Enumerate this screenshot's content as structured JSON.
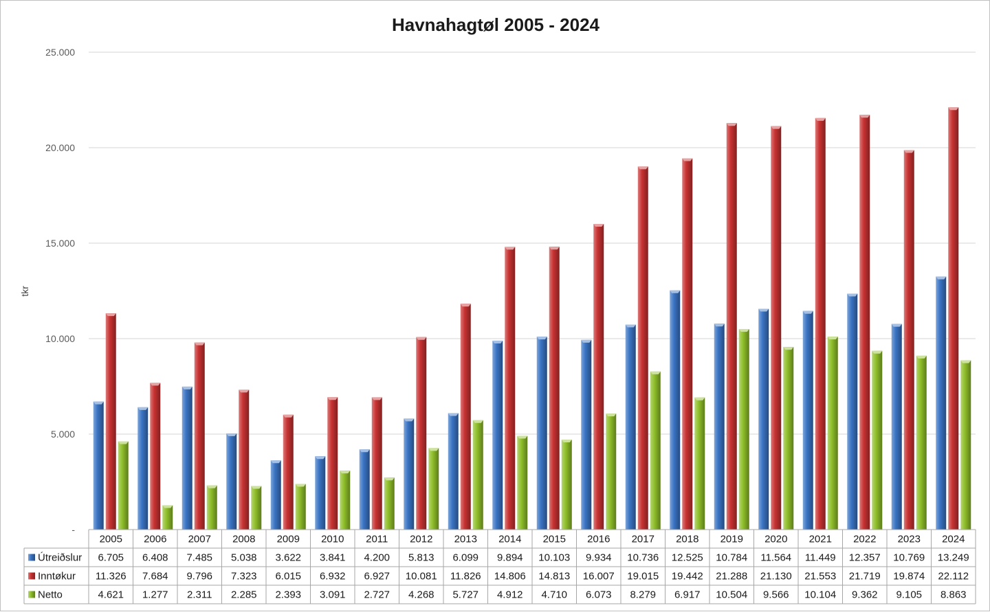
{
  "chart_data": {
    "type": "bar",
    "title": "Havnahagtøl 2005 - 2024",
    "xlabel": "",
    "ylabel": "tkr",
    "ylim": [
      0,
      25000
    ],
    "yticks": [
      0,
      5000,
      10000,
      15000,
      20000,
      25000
    ],
    "ytick_labels": [
      "-",
      "5.000",
      "10.000",
      "15.000",
      "20.000",
      "25.000"
    ],
    "grid": true,
    "legend": "data-table",
    "categories": [
      "2005",
      "2006",
      "2007",
      "2008",
      "2009",
      "2010",
      "2011",
      "2012",
      "2013",
      "2014",
      "2015",
      "2016",
      "2017",
      "2018",
      "2019",
      "2020",
      "2021",
      "2022",
      "2023",
      "2024"
    ],
    "series": [
      {
        "name": "Útreiðslur",
        "color": "#3a74c4",
        "values": [
          6705,
          6408,
          7485,
          5038,
          3622,
          3841,
          4200,
          5813,
          6099,
          9894,
          10103,
          9934,
          10736,
          12525,
          10784,
          11564,
          11449,
          12357,
          10769,
          13249
        ],
        "labels": [
          "6.705",
          "6.408",
          "7.485",
          "5.038",
          "3.622",
          "3.841",
          "4.200",
          "5.813",
          "6.099",
          "9.894",
          "10.103",
          "9.934",
          "10.736",
          "12.525",
          "10.784",
          "11.564",
          "11.449",
          "12.357",
          "10.769",
          "13.249"
        ]
      },
      {
        "name": "Inntøkur",
        "color": "#c83232",
        "values": [
          11326,
          7684,
          9796,
          7323,
          6015,
          6932,
          6927,
          10081,
          11826,
          14806,
          14813,
          16007,
          19015,
          19442,
          21288,
          21130,
          21553,
          21719,
          19874,
          22112
        ],
        "labels": [
          "11.326",
          "7.684",
          "9.796",
          "7.323",
          "6.015",
          "6.932",
          "6.927",
          "10.081",
          "11.826",
          "14.806",
          "14.813",
          "16.007",
          "19.015",
          "19.442",
          "21.288",
          "21.130",
          "21.553",
          "21.719",
          "19.874",
          "22.112"
        ]
      },
      {
        "name": "Netto",
        "color": "#8fbf2a",
        "values": [
          4621,
          1277,
          2311,
          2285,
          2393,
          3091,
          2727,
          4268,
          5727,
          4912,
          4710,
          6073,
          8279,
          6917,
          10504,
          9566,
          10104,
          9362,
          9105,
          8863
        ],
        "labels": [
          "4.621",
          "1.277",
          "2.311",
          "2.285",
          "2.393",
          "3.091",
          "2.727",
          "4.268",
          "5.727",
          "4.912",
          "4.710",
          "6.073",
          "8.279",
          "6.917",
          "10.504",
          "9.566",
          "10.104",
          "9.362",
          "9.105",
          "8.863"
        ]
      }
    ]
  }
}
